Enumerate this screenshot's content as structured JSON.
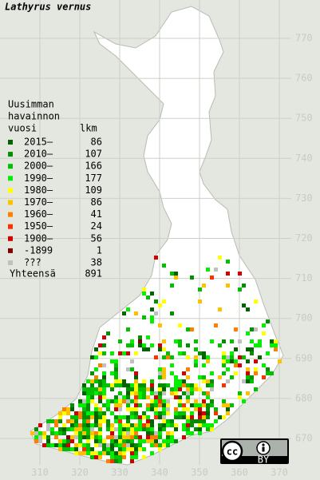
{
  "title": "Lathyrus vernus",
  "legend": {
    "heading": [
      "Uusimman",
      "havainnon",
      "vuosi"
    ],
    "count_heading": "lkm",
    "rows": [
      {
        "label": "2015–",
        "count": 86,
        "color": "#006400"
      },
      {
        "label": "2010–",
        "count": 107,
        "color": "#009000"
      },
      {
        "label": "2000–",
        "count": 166,
        "color": "#00c000"
      },
      {
        "label": "1990–",
        "count": 177,
        "color": "#00f000"
      },
      {
        "label": "1980–",
        "count": 109,
        "color": "#ffff00"
      },
      {
        "label": "1970–",
        "count": 86,
        "color": "#ffc000"
      },
      {
        "label": "1960–",
        "count": 41,
        "color": "#ff8000"
      },
      {
        "label": "1950–",
        "count": 24,
        "color": "#ff3000"
      },
      {
        "label": "1900–",
        "count": 56,
        "color": "#d00000"
      },
      {
        "label": "-1899",
        "count": 1,
        "color": "#800000"
      },
      {
        "label": "???",
        "count": 38,
        "color": "#c0c0c0"
      }
    ],
    "total": {
      "label": "Yhteensä",
      "count": 891
    }
  },
  "axes": {
    "right": [
      "770",
      "760",
      "750",
      "740",
      "730",
      "720",
      "710",
      "700",
      "690",
      "680",
      "670"
    ],
    "bottom": [
      "310",
      "320",
      "330",
      "340",
      "350",
      "360",
      "370"
    ]
  },
  "license": {
    "cc": "cc",
    "by": "BY"
  }
}
